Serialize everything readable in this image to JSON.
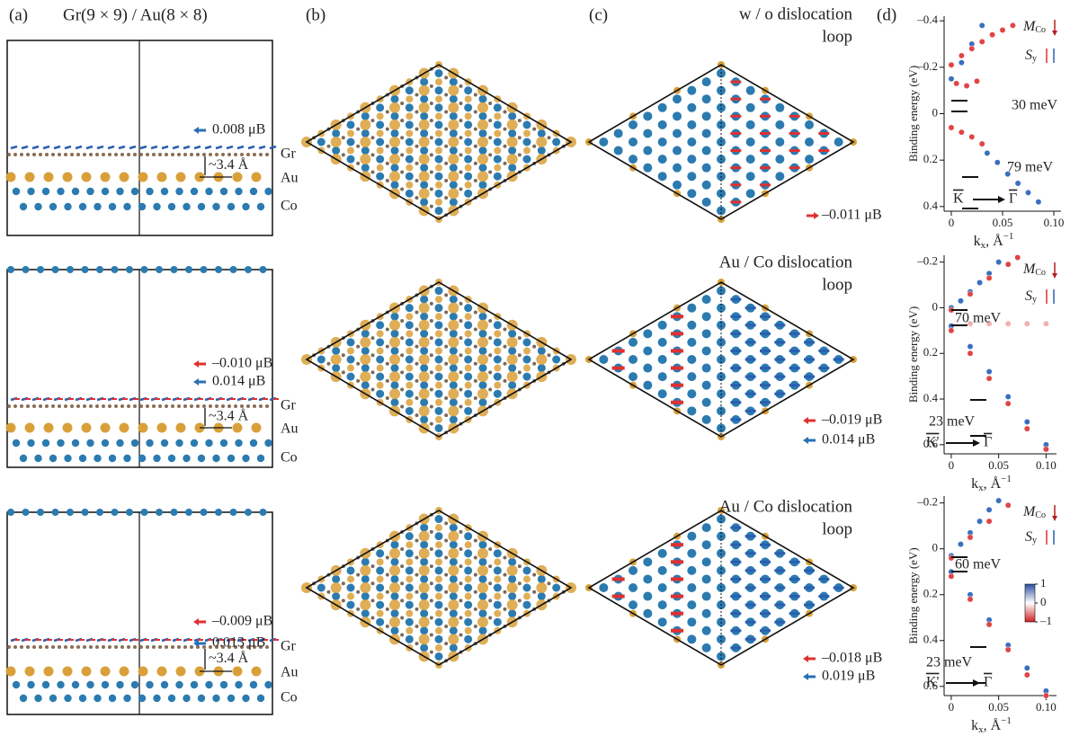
{
  "panel_labels": {
    "a": "(a)",
    "b": "(b)",
    "c": "(c)",
    "d": "(d)"
  },
  "title": "Gr(9 × 9) / Au(8 × 8)",
  "panel_a": {
    "layers": [
      "Gr",
      "Au",
      "Co"
    ],
    "distance": "~3.4 Å",
    "rows": [
      {
        "moments": [
          {
            "text": "0.008 μB",
            "color": "#2a6fb5"
          }
        ]
      },
      {
        "moments": [
          {
            "text": "–0.010 μB",
            "color": "#e03030"
          },
          {
            "text": "0.014 μB",
            "color": "#2a6fb5"
          }
        ]
      },
      {
        "moments": [
          {
            "text": "–0.009 μB",
            "color": "#e03030"
          },
          {
            "text": "0.013 μB",
            "color": "#2a6fb5"
          }
        ]
      }
    ]
  },
  "panel_c": {
    "rows": [
      {
        "title": [
          "w / o dislocation",
          "loop"
        ],
        "moments": [
          {
            "text": "–0.011 μB",
            "color": "#e03030"
          }
        ]
      },
      {
        "title": [
          "Au / Co dislocation",
          "loop"
        ],
        "moments": [
          {
            "text": "–0.019 μB",
            "color": "#e03030"
          },
          {
            "text": "0.014 μB",
            "color": "#2a6fb5"
          }
        ]
      },
      {
        "title": [
          "Au / Co dislocation",
          "loop"
        ],
        "moments": [
          {
            "text": "–0.018 μB",
            "color": "#e03030"
          },
          {
            "text": "0.019 μB",
            "color": "#2a6fb5"
          }
        ]
      }
    ]
  },
  "chart_data": [
    {
      "type": "scatter",
      "ylabel": "Binding energy (eV)",
      "xlabel": {
        "main": "k",
        "sub": "x",
        "tail": ", Å",
        "sup": "−1"
      },
      "xlim": [
        -0.007,
        0.107
      ],
      "ylim": [
        -0.42,
        0.42
      ],
      "y_inverted": true,
      "xticks": [
        0,
        0.05,
        {
          "value": 0.1,
          "label": "0.10"
        }
      ],
      "yticks": [
        {
          "value": -0.4,
          "label": "–0.4"
        },
        {
          "value": -0.2,
          "label": "–0.2"
        },
        0,
        0.2,
        0.4
      ],
      "legend": {
        "M": {
          "main": "M",
          "sub": "Co"
        },
        "S": {
          "main": "S",
          "sub": "y"
        }
      },
      "annotations": [
        "30 meV",
        "79 meV"
      ],
      "path_labels": {
        "from": "K",
        "to": "Γ"
      },
      "series": [
        {
          "color": "#3a6fc0",
          "x": [
            0.035,
            0.045,
            0.055,
            0.065,
            0.075,
            0.085,
            0,
            0.01,
            0.02,
            0.03
          ],
          "values": [
            0.17,
            0.21,
            0.26,
            0.3,
            0.34,
            0.38,
            -0.15,
            -0.22,
            -0.3,
            -0.38
          ]
        },
        {
          "color": "#e04545",
          "x": [
            0,
            0.01,
            0.02,
            0.03,
            0.04,
            0.05,
            0.06,
            0,
            0.01,
            0.02,
            0.03,
            0.005,
            0.015,
            0.025
          ],
          "values": [
            -0.21,
            -0.25,
            -0.28,
            -0.31,
            -0.34,
            -0.36,
            -0.38,
            0.06,
            0.08,
            0.1,
            0.13,
            -0.13,
            -0.12,
            -0.14
          ]
        }
      ]
    },
    {
      "type": "scatter",
      "ylabel": "Binding energy (eV)",
      "xlabel": {
        "main": "k",
        "sub": "x",
        "tail": ", Å",
        "sup": "−1"
      },
      "xlim": [
        -0.0075,
        0.111
      ],
      "ylim": [
        -0.23,
        0.64
      ],
      "y_inverted": true,
      "xticks": [
        0,
        0.05,
        {
          "value": 0.1,
          "label": "0.10"
        }
      ],
      "yticks": [
        {
          "value": -0.2,
          "label": "–0.2"
        },
        0,
        0.2,
        0.4,
        0.6
      ],
      "legend": {
        "M": {
          "main": "M",
          "sub": "Co"
        },
        "S": {
          "main": "S",
          "sub": "y"
        }
      },
      "annotations": [
        "70 meV",
        "23 meV"
      ],
      "path_labels": {
        "from": "K'",
        "to": "Γ"
      },
      "series": [
        {
          "color": "#3a6fc0",
          "x": [
            0,
            0.01,
            0.02,
            0.03,
            0.04,
            0.05,
            0,
            0.02,
            0.04,
            0.06,
            0.08,
            0.1
          ],
          "values": [
            0,
            -0.03,
            -0.07,
            -0.11,
            -0.15,
            -0.2,
            0.08,
            0.17,
            0.28,
            0.39,
            0.5,
            0.6
          ]
        },
        {
          "color": "#e04545",
          "x": [
            0,
            0.02,
            0.04,
            0.06,
            0.07,
            0,
            0.02,
            0.04,
            0.06,
            0.08,
            0.1
          ],
          "values": [
            0.01,
            -0.06,
            -0.13,
            -0.19,
            -0.22,
            0.1,
            0.2,
            0.31,
            0.42,
            0.53,
            0.62
          ]
        },
        {
          "color": "#f2b0b0",
          "x": [
            0.02,
            0.04,
            0.06,
            0.08,
            0.1
          ],
          "values": [
            0.07,
            0.07,
            0.07,
            0.07,
            0.07
          ]
        }
      ]
    },
    {
      "type": "scatter",
      "ylabel": "Binding energy (eV)",
      "xlabel": {
        "main": "k",
        "sub": "x",
        "tail": ", Å",
        "sup": "−1"
      },
      "xlim": [
        -0.0075,
        0.111
      ],
      "ylim": [
        -0.23,
        0.64
      ],
      "y_inverted": true,
      "xticks": [
        0,
        0.05,
        {
          "value": 0.1,
          "label": "0.10"
        }
      ],
      "yticks": [
        {
          "value": -0.2,
          "label": "–0.2"
        },
        0,
        0.2,
        0.4,
        0.6
      ],
      "legend": {
        "M": {
          "main": "M",
          "sub": "Co"
        },
        "S": {
          "main": "S",
          "sub": "y"
        }
      },
      "annotations": [
        "60 meV",
        "23 meV"
      ],
      "path_labels": {
        "from": "K'",
        "to": "Γ"
      },
      "colorbar": {
        "ticks": [
          1,
          0,
          {
            "value": -1,
            "label": "–1"
          }
        ]
      },
      "series": [
        {
          "color": "#3a6fc0",
          "x": [
            0,
            0.01,
            0.02,
            0.03,
            0.04,
            0.05,
            0,
            0.02,
            0.04,
            0.06,
            0.08,
            0.1
          ],
          "values": [
            0.03,
            -0.02,
            -0.07,
            -0.12,
            -0.17,
            -0.21,
            0.1,
            0.2,
            0.31,
            0.42,
            0.52,
            0.62
          ]
        },
        {
          "color": "#e04545",
          "x": [
            0,
            0.02,
            0.04,
            0.06,
            0,
            0.02,
            0.04,
            0.06,
            0.08,
            0.1
          ],
          "values": [
            0.04,
            -0.05,
            -0.12,
            -0.19,
            0.12,
            0.22,
            0.33,
            0.44,
            0.55,
            0.64
          ]
        }
      ]
    }
  ]
}
